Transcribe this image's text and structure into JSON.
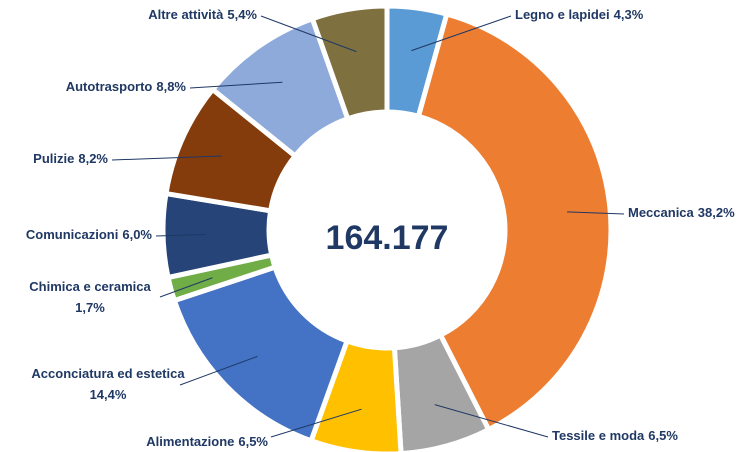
{
  "chart_data": {
    "type": "donut",
    "center_label": "164.177",
    "categories": [
      "Legno e lapidei",
      "Meccanica",
      "Tessile e moda",
      "Alimentazione",
      "Acconciatura ed estetica",
      "Chimica e ceramica",
      "Comunicazioni",
      "Pulizie",
      "Autotrasporto",
      "Altre attività"
    ],
    "values": [
      4.3,
      38.2,
      6.5,
      6.5,
      14.4,
      1.7,
      6.0,
      8.2,
      8.8,
      5.4
    ],
    "value_labels": [
      "4,3%",
      "38,2%",
      "6,5%",
      "6,5%",
      "14,4%",
      "1,7%",
      "6,0%",
      "8,2%",
      "8,8%",
      "5,4%"
    ],
    "colors": [
      "#5b9bd5",
      "#ed7d31",
      "#a5a5a5",
      "#ffc000",
      "#4472c4",
      "#70ad47",
      "#264478",
      "#843c0c",
      "#8eaadb",
      "#7f7040"
    ]
  }
}
